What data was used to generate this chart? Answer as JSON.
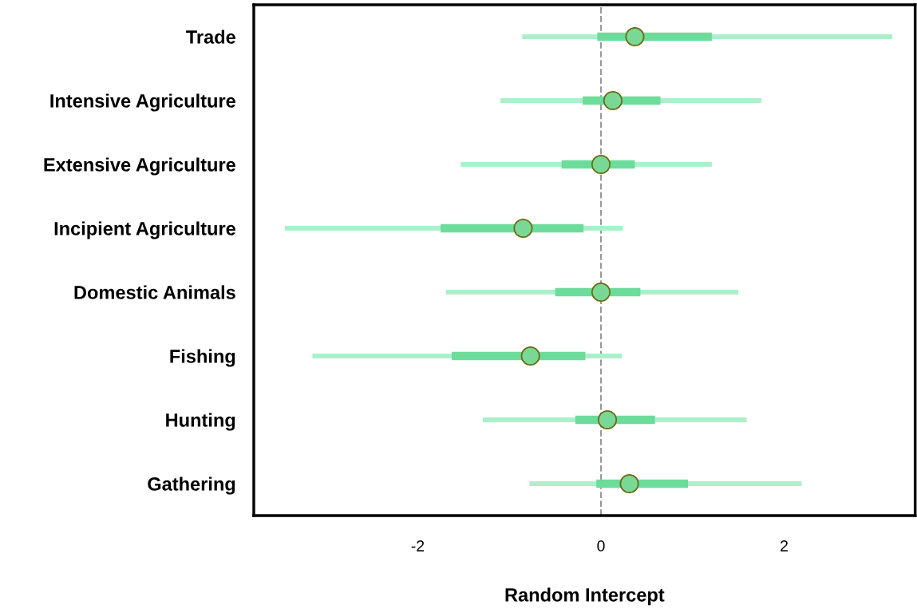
{
  "chart_data": {
    "type": "scatter",
    "orientation": "horizontal",
    "xlabel": "Random Intercept",
    "categories": [
      "Trade",
      "Intensive Agriculture",
      "Extensive Agriculture",
      "Incipient Agriculture",
      "Domestic Animals",
      "Fishing",
      "Hunting",
      "Gathering"
    ],
    "series": [
      {
        "type": "bar",
        "color": "#aaf0cb",
        "base": [
          -0.86,
          -1.1,
          -1.53,
          -3.45,
          -1.69,
          -3.15,
          -1.29,
          -0.78
        ],
        "values": [
          4.04,
          2.85,
          2.74,
          3.69,
          3.19,
          3.38,
          2.88,
          2.97
        ]
      },
      {
        "type": "bar",
        "color": "#6ddc9b",
        "base": [
          -0.04,
          -0.2,
          -0.43,
          -1.75,
          -0.5,
          -1.63,
          -0.28,
          -0.05
        ],
        "values": [
          1.25,
          0.85,
          0.8,
          1.56,
          0.93,
          1.46,
          0.87,
          1.0
        ]
      },
      {
        "color": "#7ad896",
        "values": [
          0.37,
          0.13,
          0.0,
          -0.85,
          0.0,
          -0.77,
          0.07,
          0.31
        ]
      }
    ],
    "xlim": [
      -3.79,
      3.43
    ],
    "xticks": [
      -2,
      0,
      2
    ],
    "ref_lines": [
      {
        "axis": "x",
        "value": 0,
        "color": "#999999",
        "line_style": "dashed"
      }
    ],
    "marker": "circle",
    "grid": false,
    "legend": false
  }
}
